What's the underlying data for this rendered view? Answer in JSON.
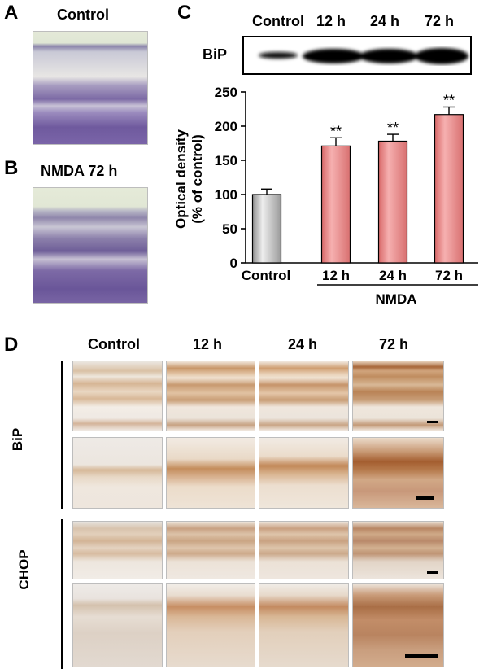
{
  "panel_labels": {
    "a": "A",
    "b": "B",
    "c": "C",
    "d": "D"
  },
  "panel_a": {
    "title": "Control"
  },
  "panel_b": {
    "title": "NMDA 72 h"
  },
  "blot": {
    "protein": "BiP",
    "lanes": [
      "Control",
      "12 h",
      "24 h",
      "72 h"
    ],
    "band_intensity": [
      0.35,
      1.0,
      0.95,
      1.0
    ]
  },
  "chart_data": {
    "type": "bar",
    "categories": [
      "Control",
      "12 h",
      "24 h",
      "72 h"
    ],
    "values": [
      100,
      171,
      178,
      217
    ],
    "errors": [
      8,
      12,
      10,
      11
    ],
    "significance": [
      "",
      "**",
      "**",
      "**"
    ],
    "ylabel_line1": "Optical density",
    "ylabel_line2": "(% of control)",
    "ylim": [
      0,
      250
    ],
    "yticks": [
      0,
      50,
      100,
      150,
      200,
      250
    ],
    "group_label": "NMDA",
    "colors": {
      "control": "#cfcfcf",
      "treated": "#ef8f8f"
    }
  },
  "panel_d": {
    "columns": [
      "Control",
      "12 h",
      "24 h",
      "72 h"
    ],
    "rows": [
      "BiP",
      "CHOP"
    ]
  }
}
